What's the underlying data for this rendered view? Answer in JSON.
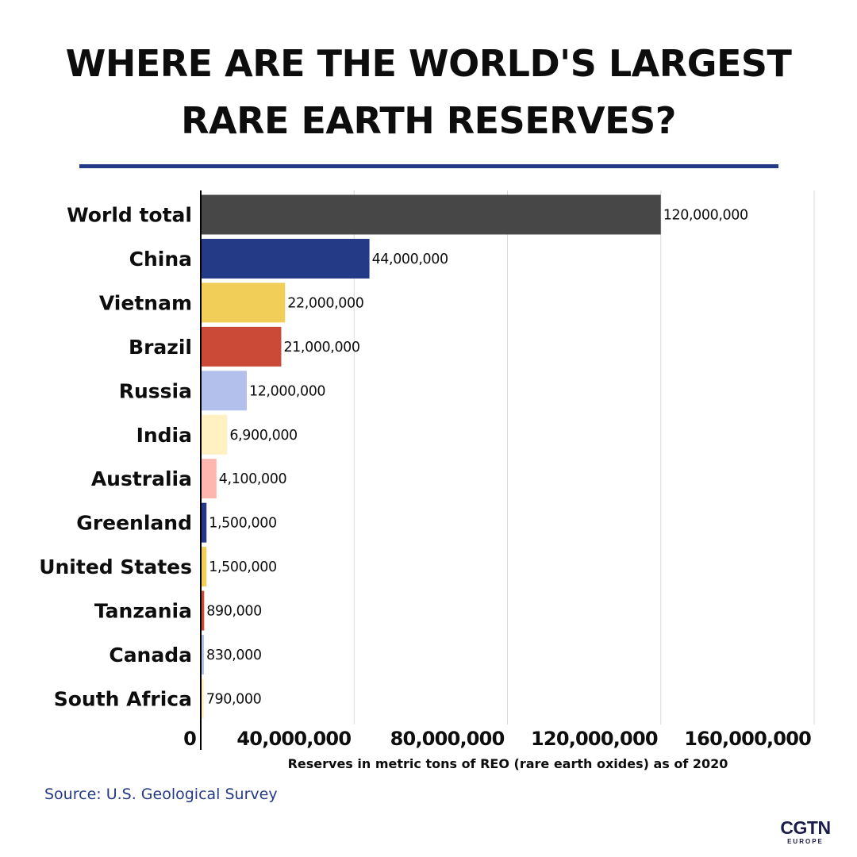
{
  "title_lines": [
    "WHERE ARE THE WORLD'S LARGEST",
    "RARE EARTH RESERVES?"
  ],
  "source": "Source: U.S. Geological Survey",
  "logo": {
    "main": "CGTN",
    "sub": "EUROPE"
  },
  "colors": {
    "accent": "#253a86",
    "gridline": "#d9d9d9",
    "axis": "#000000"
  },
  "chart_data": {
    "type": "bar",
    "orientation": "horizontal",
    "title": "WHERE ARE THE WORLD'S LARGEST RARE EARTH RESERVES?",
    "xlabel": "Reserves in metric tons of REO (rare earth oxides) as of 2020",
    "ylabel": "",
    "xlim": [
      0,
      160000000
    ],
    "xticks": [
      0,
      40000000,
      80000000,
      120000000,
      160000000
    ],
    "xtick_labels": [
      "0",
      "40,000,000",
      "80,000,000",
      "120,000,000",
      "160,000,000"
    ],
    "grid": true,
    "legend": "none",
    "categories": [
      "World total",
      "China",
      "Vietnam",
      "Brazil",
      "Russia",
      "India",
      "Australia",
      "Greenland",
      "United States",
      "Tanzania",
      "Canada",
      "South Africa"
    ],
    "values": [
      120000000,
      44000000,
      22000000,
      21000000,
      12000000,
      6900000,
      4100000,
      1500000,
      1500000,
      890000,
      830000,
      790000
    ],
    "value_labels": [
      "120,000,000",
      "44,000,000",
      "22,000,000",
      "21,000,000",
      "12,000,000",
      "6,900,000",
      "4,100,000",
      "1,500,000",
      "1,500,000",
      "890,000",
      "830,000",
      "790,000"
    ],
    "bar_colors": [
      "#474747",
      "#253a86",
      "#f0ce57",
      "#cb4a37",
      "#b4c0ec",
      "#fff1c2",
      "#ffb6ae",
      "#253a86",
      "#f0ce57",
      "#cb4a37",
      "#b4c0ec",
      "#fff1c2"
    ]
  }
}
